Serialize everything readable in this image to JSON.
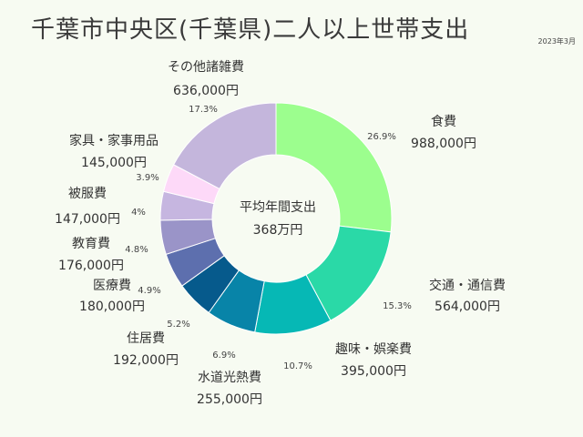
{
  "title": "千葉市中央区(千葉県)二人以上世帯支出",
  "date": "2023年3月",
  "center": {
    "line1": "平均年間支出",
    "line2": "368万円"
  },
  "colors": [
    "#9cfe8e",
    "#2ad9a7",
    "#06b8b5",
    "#0884a8",
    "#065a8c",
    "#5d6fae",
    "#9a94c8",
    "#c6b6e0",
    "#fdd9f8",
    "#c4b6dc"
  ],
  "chart_data": {
    "type": "pie",
    "donut": true,
    "categories": [
      "食費",
      "交通・通信費",
      "趣味・娯楽費",
      "水道光熱費",
      "住居費",
      "医療費",
      "教育費",
      "被服費",
      "家具・家事用品",
      "その他諸雑費"
    ],
    "values": [
      988000,
      564000,
      395000,
      255000,
      192000,
      180000,
      176000,
      147000,
      145000,
      636000
    ],
    "amount_labels": [
      "988,000円",
      "564,000円",
      "395,000円",
      "255,000円",
      "192,000円",
      "180,000円",
      "176,000円",
      "147,000円",
      "145,000円",
      "636,000円"
    ],
    "percent_labels": [
      "26.9%",
      "15.3%",
      "10.7%",
      "6.9%",
      "5.2%",
      "4.9%",
      "4.8%",
      "4%",
      "3.9%",
      "17.3%"
    ],
    "total_label": "368万円"
  }
}
